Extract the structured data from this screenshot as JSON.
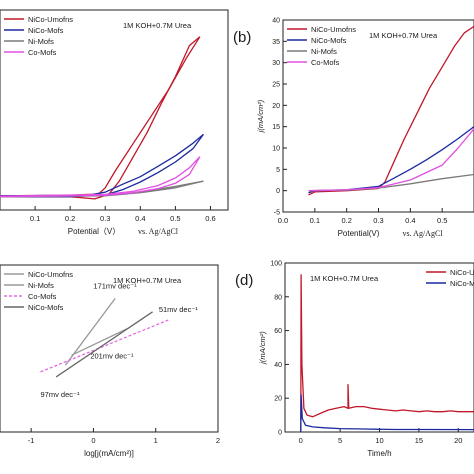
{
  "chart_data": [
    {
      "id": "a",
      "panel_label": "",
      "type": "line",
      "annotation": "1M KOH+0.7M Urea",
      "xlabel": "Potential（V）",
      "xlabel_ref": "vs. Ag/AgCl",
      "ylabel": "",
      "xlim": [
        0.0,
        0.65
      ],
      "ylim": [
        -3,
        42
      ],
      "xticks": [
        "0.1",
        "0.2",
        "0.3",
        "0.4",
        "0.5",
        "0.6"
      ],
      "xtick_values": [
        0.1,
        0.2,
        0.3,
        0.4,
        0.5,
        0.6
      ],
      "yticks": [],
      "legend": [
        "NiCo-Umofns",
        "NiCo-Mofs",
        "Ni-Mofs",
        "Co-Mofs"
      ],
      "legend_position": "top-left",
      "series": [
        {
          "name": "NiCo-Umofns",
          "color": "#c0182a",
          "forward": [
            [
              0.0,
              0.2
            ],
            [
              0.2,
              0.3
            ],
            [
              0.25,
              0.5
            ],
            [
              0.28,
              0.5
            ],
            [
              0.3,
              2.0
            ],
            [
              0.33,
              6.0
            ],
            [
              0.38,
              12.0
            ],
            [
              0.43,
              18.0
            ],
            [
              0.48,
              24.0
            ],
            [
              0.53,
              31.0
            ],
            [
              0.57,
              36.0
            ]
          ],
          "reverse": [
            [
              0.57,
              36.0
            ],
            [
              0.54,
              34.0
            ],
            [
              0.5,
              27.0
            ],
            [
              0.46,
              21.0
            ],
            [
              0.42,
              14.5
            ],
            [
              0.38,
              9.0
            ],
            [
              0.34,
              3.5
            ],
            [
              0.31,
              0.5
            ],
            [
              0.27,
              -0.5
            ],
            [
              0.2,
              0.0
            ],
            [
              0.0,
              0.0
            ]
          ]
        },
        {
          "name": "NiCo-Mofs",
          "color": "#1a2a9e",
          "forward": [
            [
              0.0,
              0.2
            ],
            [
              0.25,
              0.3
            ],
            [
              0.3,
              1.0
            ],
            [
              0.35,
              2.8
            ],
            [
              0.4,
              4.5
            ],
            [
              0.45,
              6.8
            ],
            [
              0.5,
              9.2
            ],
            [
              0.55,
              12.0
            ],
            [
              0.58,
              14.0
            ]
          ],
          "reverse": [
            [
              0.58,
              14.0
            ],
            [
              0.55,
              10.8
            ],
            [
              0.5,
              7.8
            ],
            [
              0.45,
              5.4
            ],
            [
              0.4,
              3.3
            ],
            [
              0.35,
              1.6
            ],
            [
              0.3,
              0.4
            ],
            [
              0.2,
              0.0
            ],
            [
              0.0,
              0.0
            ]
          ]
        },
        {
          "name": "Ni-Mofs",
          "color": "#7a7a7a",
          "forward": [
            [
              0.0,
              0.0
            ],
            [
              0.3,
              0.3
            ],
            [
              0.4,
              1.0
            ],
            [
              0.5,
              2.3
            ],
            [
              0.58,
              3.5
            ]
          ],
          "reverse": [
            [
              0.58,
              3.5
            ],
            [
              0.5,
              2.0
            ],
            [
              0.4,
              0.9
            ],
            [
              0.3,
              0.2
            ],
            [
              0.0,
              0.0
            ]
          ]
        },
        {
          "name": "Co-Mofs",
          "color": "#e050e0",
          "forward": [
            [
              0.0,
              0.1
            ],
            [
              0.3,
              0.5
            ],
            [
              0.38,
              1.2
            ],
            [
              0.45,
              2.5
            ],
            [
              0.5,
              4.2
            ],
            [
              0.54,
              6.5
            ],
            [
              0.57,
              9.0
            ]
          ],
          "reverse": [
            [
              0.57,
              9.0
            ],
            [
              0.54,
              5.0
            ],
            [
              0.5,
              3.0
            ],
            [
              0.45,
              1.8
            ],
            [
              0.38,
              0.9
            ],
            [
              0.3,
              0.3
            ],
            [
              0.0,
              0.0
            ]
          ]
        }
      ]
    },
    {
      "id": "b",
      "panel_label": "(b)",
      "type": "line",
      "annotation": "1M KOH+0.7M Urea",
      "xlabel": "Potential(V)",
      "xlabel_ref": "vs. Ag/AgCl",
      "ylabel": "j(mA/cm²)",
      "xlim": [
        0.0,
        0.6
      ],
      "ylim": [
        -5,
        40
      ],
      "xticks": [
        "0.0",
        "0.1",
        "0.2",
        "0.3",
        "0.4",
        "0.5"
      ],
      "xtick_values": [
        0.0,
        0.1,
        0.2,
        0.3,
        0.4,
        0.5
      ],
      "yticks": [
        "-5",
        "0",
        "5",
        "10",
        "15",
        "20",
        "25",
        "30",
        "35",
        "40"
      ],
      "ytick_values": [
        -5,
        0,
        5,
        10,
        15,
        20,
        25,
        30,
        35,
        40
      ],
      "legend": [
        "NiCo-Umofns",
        "NiCo-Mofs",
        "Ni-Mofs",
        "Co-Mofs"
      ],
      "legend_position": "top-left",
      "series": [
        {
          "name": "NiCo-Umofns",
          "color": "#c0182a",
          "points": [
            [
              0.08,
              -1.0
            ],
            [
              0.1,
              -0.3
            ],
            [
              0.2,
              0.0
            ],
            [
              0.3,
              0.5
            ],
            [
              0.32,
              2.0
            ],
            [
              0.35,
              7.0
            ],
            [
              0.38,
              12.0
            ],
            [
              0.42,
              18.0
            ],
            [
              0.46,
              24.0
            ],
            [
              0.5,
              29.0
            ],
            [
              0.54,
              34.0
            ],
            [
              0.57,
              37.0
            ],
            [
              0.6,
              38.5
            ]
          ]
        },
        {
          "name": "NiCo-Mofs",
          "color": "#1a2a9e",
          "points": [
            [
              0.08,
              -0.5
            ],
            [
              0.1,
              0.0
            ],
            [
              0.2,
              0.2
            ],
            [
              0.3,
              1.0
            ],
            [
              0.35,
              3.0
            ],
            [
              0.4,
              5.0
            ],
            [
              0.45,
              7.2
            ],
            [
              0.5,
              9.6
            ],
            [
              0.55,
              12.2
            ],
            [
              0.6,
              15.0
            ]
          ]
        },
        {
          "name": "Ni-Mofs",
          "color": "#7a7a7a",
          "points": [
            [
              0.08,
              0.0
            ],
            [
              0.2,
              0.1
            ],
            [
              0.3,
              0.6
            ],
            [
              0.4,
              1.6
            ],
            [
              0.5,
              2.8
            ],
            [
              0.6,
              3.8
            ]
          ]
        },
        {
          "name": "Co-Mofs",
          "color": "#e050e0",
          "points": [
            [
              0.08,
              0.0
            ],
            [
              0.2,
              0.2
            ],
            [
              0.3,
              0.7
            ],
            [
              0.4,
              2.5
            ],
            [
              0.5,
              6.0
            ],
            [
              0.55,
              10.0
            ],
            [
              0.6,
              14.5
            ]
          ]
        }
      ]
    },
    {
      "id": "c",
      "panel_label": "",
      "type": "line",
      "annotation": "1M KOH+0.7M Urea",
      "xlabel": "log[j(mA/cm²)]",
      "ylabel": "",
      "xlim": [
        -1.5,
        2.0
      ],
      "ylim": [
        0.0,
        1.0
      ],
      "xticks": [
        "-1",
        "0",
        "1",
        "2"
      ],
      "xtick_values": [
        -1,
        0,
        1,
        2
      ],
      "yticks": [],
      "legend": [
        "NiCo-Umofns",
        "Ni-Mofs",
        "Co-Mofs",
        "NiCo-Mofs"
      ],
      "legend_position": "top-left",
      "series": [
        {
          "name": "NiCo-Umofns",
          "color": "#999999",
          "dash": false,
          "points": [
            [
              -0.45,
              0.4
            ],
            [
              0.35,
              0.8
            ]
          ]
        },
        {
          "name": "Ni-Mofs",
          "color": "#999999",
          "dash": false,
          "points": [
            [
              -0.35,
              0.46
            ],
            [
              0.55,
              0.62
            ]
          ]
        },
        {
          "name": "Co-Mofs",
          "color": "#e36ae3",
          "dash": true,
          "points": [
            [
              -0.85,
              0.36
            ],
            [
              1.2,
              0.67
            ]
          ]
        },
        {
          "name": "NiCo-Mofs",
          "color": "#666666",
          "dash": false,
          "points": [
            [
              -0.6,
              0.33
            ],
            [
              0.95,
              0.72
            ]
          ]
        }
      ],
      "slope_labels": [
        {
          "text": "171mv dec⁻¹",
          "x": 0.0,
          "y": 0.86
        },
        {
          "text": "51mv dec⁻¹",
          "x": 1.05,
          "y": 0.72
        },
        {
          "text": "201mv dec⁻¹",
          "x": -0.05,
          "y": 0.44
        },
        {
          "text": "97mv dec⁻¹",
          "x": -0.85,
          "y": 0.21
        }
      ]
    },
    {
      "id": "d",
      "panel_label": "(d)",
      "type": "line",
      "annotation": "1M KOH+0.7M Urea",
      "xlabel": "Time/h",
      "ylabel": "j(mA/cm²)",
      "xlim": [
        -2,
        22
      ],
      "ylim": [
        0,
        100
      ],
      "xticks": [
        "0",
        "5",
        "10",
        "15",
        "20"
      ],
      "xtick_values": [
        0,
        5,
        10,
        15,
        20
      ],
      "yticks": [
        "0",
        "20",
        "40",
        "60",
        "80",
        "100"
      ],
      "ytick_values": [
        0,
        20,
        40,
        60,
        80,
        100
      ],
      "legend": [
        "NiCo-Umo",
        "NiCo-Mo"
      ],
      "legend_position": "top-right",
      "series": [
        {
          "name": "NiCo-Umo",
          "color": "#c0182a",
          "points": [
            [
              0,
              0
            ],
            [
              0.05,
              93
            ],
            [
              0.15,
              40
            ],
            [
              0.4,
              14
            ],
            [
              0.8,
              10
            ],
            [
              1.5,
              9
            ],
            [
              2.5,
              11
            ],
            [
              3.5,
              13
            ],
            [
              4.5,
              14
            ],
            [
              5.5,
              15
            ],
            [
              6,
              14
            ],
            [
              6,
              28
            ],
            [
              6.1,
              14
            ],
            [
              7,
              15
            ],
            [
              8,
              15
            ],
            [
              9,
              14
            ],
            [
              10,
              13.5
            ],
            [
              11,
              13
            ],
            [
              12,
              12.5
            ],
            [
              13,
              13
            ],
            [
              14,
              12.5
            ],
            [
              15,
              12
            ],
            [
              16,
              12.5
            ],
            [
              17,
              12
            ],
            [
              18,
              12
            ],
            [
              19,
              12.5
            ],
            [
              20,
              12
            ],
            [
              21,
              12
            ],
            [
              22,
              12
            ]
          ]
        },
        {
          "name": "NiCo-Mo",
          "color": "#1a2a9e",
          "points": [
            [
              0,
              0
            ],
            [
              0.05,
              22
            ],
            [
              0.2,
              8
            ],
            [
              0.6,
              4
            ],
            [
              1.5,
              3
            ],
            [
              3,
              2.5
            ],
            [
              5,
              2
            ],
            [
              8,
              1.8
            ],
            [
              12,
              1.5
            ],
            [
              16,
              1.5
            ],
            [
              22,
              1.4
            ]
          ]
        }
      ]
    }
  ]
}
